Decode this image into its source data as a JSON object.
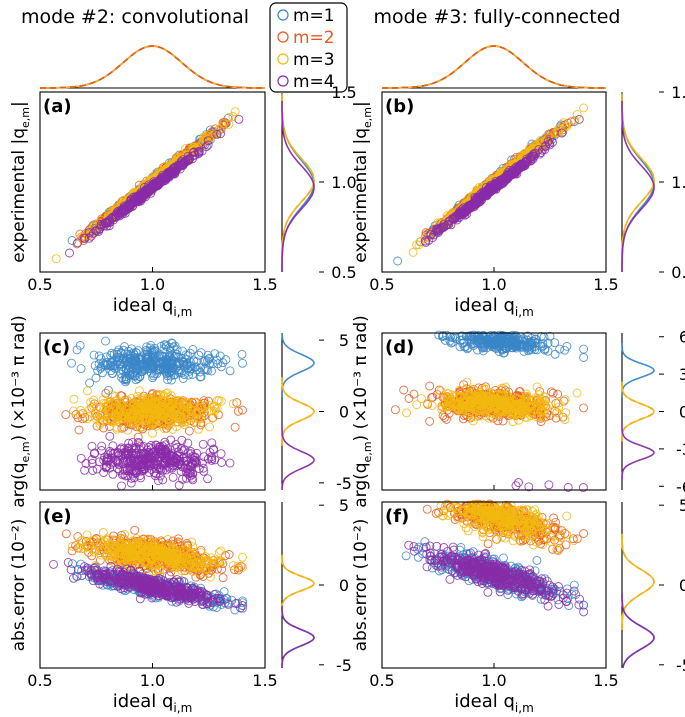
{
  "figure": {
    "column_titles": [
      "mode #2: convolutional",
      "mode #3: fully-connected"
    ]
  },
  "legend": [
    {
      "label": "m=1",
      "color": "#3a86c8"
    },
    {
      "label": "m=2",
      "color": "#e8591f"
    },
    {
      "label": "m=3",
      "color": "#f2b90f"
    },
    {
      "label": "m=4",
      "color": "#8a2ca8"
    }
  ],
  "chart_data": [
    {
      "id": "a",
      "type": "scatter",
      "panel_label": "(a)",
      "xlabel": "ideal q",
      "xlabel_sub": "i,m",
      "ylabel": "experimental |q",
      "ylabel_sub": "e,m",
      "ylabel_tail": "|",
      "xlim": [
        0.5,
        1.5
      ],
      "ylim": [
        0.5,
        1.5
      ],
      "xticks": [
        "0.5",
        "1.0",
        "1.5"
      ],
      "yticks": [
        "0.5",
        "1.0",
        "1.5"
      ],
      "yaxis_side": "right",
      "series": [
        {
          "name": "m=1",
          "slope": 1.0,
          "intercept": 0.0,
          "noise": 0.012,
          "x_mean": 1.0,
          "x_sd": 0.13
        },
        {
          "name": "m=2",
          "slope": 1.0,
          "intercept": 0.0,
          "noise": 0.012,
          "x_mean": 1.0,
          "x_sd": 0.13
        },
        {
          "name": "m=3",
          "slope": 1.0,
          "intercept": 0.0,
          "noise": 0.012,
          "x_mean": 1.0,
          "x_sd": 0.13
        },
        {
          "name": "m=4",
          "slope": 0.98,
          "intercept": -0.01,
          "noise": 0.01,
          "x_mean": 0.98,
          "x_sd": 0.12
        }
      ],
      "marginal_y": [
        {
          "name": "m=1",
          "center": 0.99,
          "sd": 0.13
        },
        {
          "name": "m=2",
          "center": 1.01,
          "sd": 0.12
        },
        {
          "name": "m=3",
          "center": 1.01,
          "sd": 0.12
        },
        {
          "name": "m=4",
          "center": 0.97,
          "sd": 0.12
        }
      ]
    },
    {
      "id": "b",
      "type": "scatter",
      "panel_label": "(b)",
      "xlabel": "ideal q",
      "xlabel_sub": "i,m",
      "ylabel": "experimental |q",
      "ylabel_sub": "e,m",
      "ylabel_tail": "|",
      "xlim": [
        0.5,
        1.5
      ],
      "ylim": [
        0.5,
        1.5
      ],
      "xticks": [
        "0.5",
        "1.0",
        "1.5"
      ],
      "yticks": [
        "0.5",
        "1.0",
        "1.5"
      ],
      "yaxis_side": "right",
      "series": [
        {
          "name": "m=1",
          "slope": 1.0,
          "intercept": 0.0,
          "noise": 0.012,
          "x_mean": 1.0,
          "x_sd": 0.13
        },
        {
          "name": "m=2",
          "slope": 1.0,
          "intercept": 0.0,
          "noise": 0.012,
          "x_mean": 1.0,
          "x_sd": 0.13
        },
        {
          "name": "m=3",
          "slope": 1.0,
          "intercept": 0.0,
          "noise": 0.012,
          "x_mean": 1.0,
          "x_sd": 0.13
        },
        {
          "name": "m=4",
          "slope": 0.98,
          "intercept": -0.01,
          "noise": 0.01,
          "x_mean": 0.98,
          "x_sd": 0.12
        }
      ],
      "marginal_y": [
        {
          "name": "m=1",
          "center": 0.99,
          "sd": 0.13
        },
        {
          "name": "m=2",
          "center": 1.01,
          "sd": 0.12
        },
        {
          "name": "m=3",
          "center": 1.01,
          "sd": 0.12
        },
        {
          "name": "m=4",
          "center": 0.97,
          "sd": 0.12
        }
      ]
    },
    {
      "id": "c",
      "type": "scatter",
      "panel_label": "(c)",
      "xlabel": "",
      "xlabel_sub": "",
      "ylabel": "arg(q",
      "ylabel_sub": "e,m",
      "ylabel_tail": ") (×10⁻³ π rad)",
      "xlim": [
        0.5,
        1.5
      ],
      "ylim": [
        -5.5,
        5.5
      ],
      "xticks": [],
      "yticks": [
        "-5",
        "0",
        "5"
      ],
      "yaxis_side": "right",
      "series": [
        {
          "name": "m=1",
          "slope": 0.0,
          "intercept": 3.4,
          "noise": 0.55,
          "x_mean": 1.0,
          "x_sd": 0.13
        },
        {
          "name": "m=2",
          "slope": 0.0,
          "intercept": 0.0,
          "noise": 0.55,
          "x_mean": 1.0,
          "x_sd": 0.13
        },
        {
          "name": "m=3",
          "slope": 0.0,
          "intercept": 0.0,
          "noise": 0.55,
          "x_mean": 1.0,
          "x_sd": 0.13
        },
        {
          "name": "m=4",
          "slope": 0.0,
          "intercept": -3.4,
          "noise": 0.6,
          "x_mean": 1.0,
          "x_sd": 0.13
        }
      ],
      "marginal_y": [
        {
          "name": "m=1",
          "center": 3.4,
          "sd": 0.6
        },
        {
          "name": "m=2",
          "center": 0.0,
          "sd": 0.6
        },
        {
          "name": "m=3",
          "center": 0.0,
          "sd": 0.6
        },
        {
          "name": "m=4",
          "center": -3.4,
          "sd": 0.6
        }
      ]
    },
    {
      "id": "d",
      "type": "scatter",
      "panel_label": "(d)",
      "xlabel": "",
      "xlabel_sub": "",
      "ylabel": "arg(q",
      "ylabel_sub": "e,m",
      "ylabel_tail": ") (×10⁻³ π rad)",
      "xlim": [
        0.5,
        1.5
      ],
      "ylim": [
        -6.3,
        6.3
      ],
      "xticks": [],
      "yticks": [
        "-6",
        "-3",
        "0",
        "3",
        "6"
      ],
      "yaxis_side": "right",
      "series": [
        {
          "name": "m=1",
          "slope": -2.4,
          "intercept": 5.8,
          "noise": 0.45,
          "x_mean": 1.0,
          "x_sd": 0.13
        },
        {
          "name": "m=2",
          "slope": -0.6,
          "intercept": 0.6,
          "noise": 0.55,
          "x_mean": 1.0,
          "x_sd": 0.13
        },
        {
          "name": "m=3",
          "slope": -0.6,
          "intercept": 0.6,
          "noise": 0.55,
          "x_mean": 1.0,
          "x_sd": 0.13
        },
        {
          "name": "m=4",
          "slope": 4.0,
          "intercept": -7.6,
          "noise": 0.5,
          "x_mean": 1.0,
          "x_sd": 0.13
        }
      ],
      "marginal_y": [
        {
          "name": "m=1",
          "center": 3.3,
          "sd": 0.55
        },
        {
          "name": "m=2",
          "center": 0.0,
          "sd": 0.6
        },
        {
          "name": "m=3",
          "center": 0.0,
          "sd": 0.6
        },
        {
          "name": "m=4",
          "center": -3.3,
          "sd": 0.55
        }
      ]
    },
    {
      "id": "e",
      "type": "scatter",
      "panel_label": "(e)",
      "xlabel": "ideal q",
      "xlabel_sub": "i,m",
      "ylabel": "abs.error (10",
      "ylabel_sub": "",
      "ylabel_tail": "⁻²)",
      "xlim": [
        0.5,
        1.5
      ],
      "ylim": [
        -5.2,
        5.2
      ],
      "xticks": [
        "0.5",
        "1.0",
        "1.5"
      ],
      "yticks": [
        "-5",
        "0",
        "5"
      ],
      "yaxis_side": "right",
      "series": [
        {
          "name": "m=1",
          "slope": -3.0,
          "intercept": -0.1,
          "noise": 0.3,
          "x_mean": 1.0,
          "x_sd": 0.15
        },
        {
          "name": "m=2",
          "slope": -1.8,
          "intercept": 1.9,
          "noise": 0.45,
          "x_mean": 1.0,
          "x_sd": 0.14
        },
        {
          "name": "m=3",
          "slope": -1.8,
          "intercept": 1.9,
          "noise": 0.45,
          "x_mean": 1.0,
          "x_sd": 0.14
        },
        {
          "name": "m=4",
          "slope": -3.0,
          "intercept": -0.1,
          "noise": 0.3,
          "x_mean": 1.0,
          "x_sd": 0.14
        }
      ],
      "marginal_y": [
        {
          "name": "m=1",
          "center": -3.3,
          "sd": 0.5
        },
        {
          "name": "m=2",
          "center": 0.1,
          "sd": 0.45
        },
        {
          "name": "m=3",
          "center": 0.1,
          "sd": 0.45
        },
        {
          "name": "m=4",
          "center": -3.3,
          "sd": 0.5
        }
      ]
    },
    {
      "id": "f",
      "type": "scatter",
      "panel_label": "(f)",
      "xlabel": "ideal q",
      "xlabel_sub": "i,m",
      "ylabel": "abs.error (10",
      "ylabel_sub": "",
      "ylabel_tail": "⁻²)",
      "xlim": [
        0.5,
        1.5
      ],
      "ylim": [
        -5.2,
        5.2
      ],
      "xticks": [
        "0.5",
        "1.0",
        "1.5"
      ],
      "yticks": [
        "-5",
        "0",
        "5"
      ],
      "yaxis_side": "right",
      "series": [
        {
          "name": "m=1",
          "slope": -4.0,
          "intercept": 0.7,
          "noise": 0.4,
          "x_mean": 1.0,
          "x_sd": 0.15
        },
        {
          "name": "m=2",
          "slope": -4.2,
          "intercept": 4.4,
          "noise": 0.55,
          "x_mean": 1.0,
          "x_sd": 0.14
        },
        {
          "name": "m=3",
          "slope": -4.2,
          "intercept": 4.4,
          "noise": 0.55,
          "x_mean": 1.0,
          "x_sd": 0.14
        },
        {
          "name": "m=4",
          "slope": -4.0,
          "intercept": 0.7,
          "noise": 0.4,
          "x_mean": 1.0,
          "x_sd": 0.14
        }
      ],
      "marginal_y": [
        {
          "name": "m=1",
          "center": -3.3,
          "sd": 0.7
        },
        {
          "name": "m=2",
          "center": 0.2,
          "sd": 0.75
        },
        {
          "name": "m=3",
          "center": 0.2,
          "sd": 0.75
        },
        {
          "name": "m=4",
          "center": -3.3,
          "sd": 0.7
        }
      ]
    }
  ],
  "top_marginals": [
    {
      "panel": "a",
      "center": 1.0,
      "sd": 0.13
    },
    {
      "panel": "b",
      "center": 1.0,
      "sd": 0.13
    }
  ]
}
